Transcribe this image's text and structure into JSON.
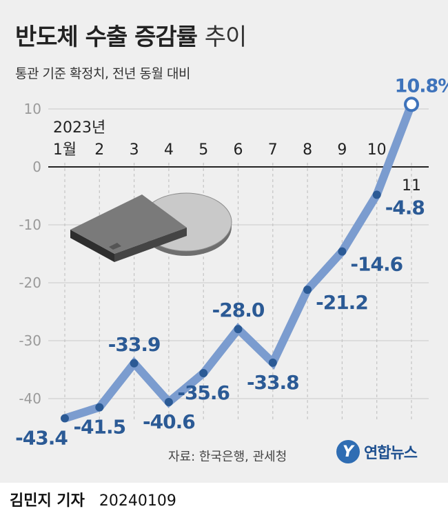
{
  "header": {
    "title_main": "반도체 수출 증감률",
    "title_light": "추이",
    "subtitle": "통관 기준 확정치, 전년 동월 대비"
  },
  "chart_data": {
    "type": "line",
    "title": "반도체 수출 증감률 추이",
    "subtitle": "통관 기준 확정치, 전년 동월 대비",
    "year_label": "2023년",
    "categories": [
      "1월",
      "2",
      "3",
      "4",
      "5",
      "6",
      "7",
      "8",
      "9",
      "10",
      "11"
    ],
    "series": [
      {
        "values": [
          -43.4,
          -41.5,
          -33.9,
          -40.6,
          -35.6,
          -28.0,
          -33.8,
          -21.2,
          -14.6,
          -4.8,
          10.8
        ]
      }
    ],
    "data_labels": [
      "-43.4",
      "-41.5",
      "-33.9",
      "-40.6",
      "-35.6",
      "-28.0",
      "-33.8",
      "-21.2",
      "-14.6",
      "-4.8",
      "10.8%"
    ],
    "y_ticks": [
      "10",
      "0",
      "-10",
      "-20",
      "-30",
      "-40"
    ],
    "y_tick_values": [
      10,
      0,
      -10,
      -20,
      -30,
      -40
    ],
    "ylim": [
      -50,
      12
    ],
    "grid": true,
    "colors": {
      "line": "#7b9ccf",
      "marker": "#2b5a95",
      "label": "#2b5a95",
      "last_label": "#3e73bb"
    }
  },
  "footer": {
    "source": "자료: 한국은행, 관세청",
    "logo_mark": "Y",
    "logo_text": "연합뉴스",
    "reporter": "김민지 기자",
    "date": "20240109"
  }
}
